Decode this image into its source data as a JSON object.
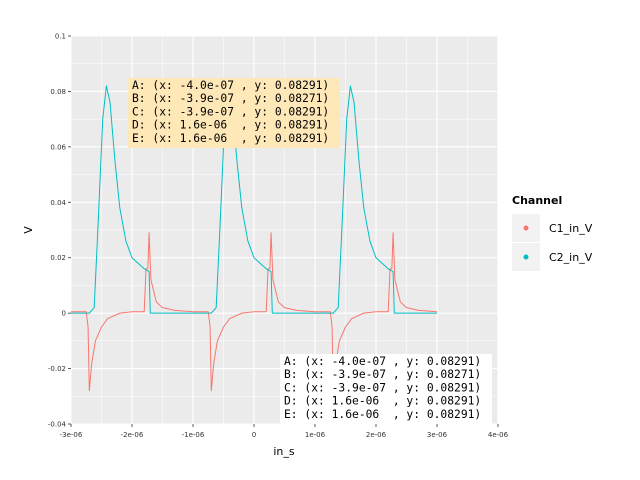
{
  "chart_data": {
    "type": "line",
    "xlabel": "in_s",
    "ylabel": "V",
    "xlim": [
      -3e-06,
      4e-06
    ],
    "ylim": [
      -0.04,
      0.1
    ],
    "x_ticks": [
      -3e-06,
      -2e-06,
      -1e-06,
      0,
      1e-06,
      2e-06,
      3e-06,
      4e-06
    ],
    "x_tick_labels": [
      "-3e-06",
      "-2e-06",
      "-1e-06",
      "0",
      "1e-06",
      "2e-06",
      "3e-06",
      "4e-06"
    ],
    "y_ticks": [
      -0.04,
      -0.02,
      0,
      0.02,
      0.04,
      0.06,
      0.08,
      0.1
    ],
    "y_tick_labels": [
      "-0.04",
      "-0.02",
      "0",
      "0.02",
      "0.04",
      "0.06",
      "0.08",
      "0.1"
    ],
    "grid": true,
    "legend": {
      "title": "Channel",
      "position": "right",
      "entries": [
        {
          "name": "C1_in_V",
          "color": "#F8766D"
        },
        {
          "name": "C2_in_V",
          "color": "#00BFC4"
        }
      ]
    },
    "series": [
      {
        "name": "C1_in_V",
        "color": "#F8766D",
        "points": [
          [
            -3e-06,
            0.0005
          ],
          [
            -2.75e-06,
            0.0005
          ],
          [
            -2.72e-06,
            -0.005
          ],
          [
            -2.7e-06,
            -0.028
          ],
          [
            -2.66e-06,
            -0.018
          ],
          [
            -2.6e-06,
            -0.01
          ],
          [
            -2.5e-06,
            -0.005
          ],
          [
            -2.4e-06,
            -0.002
          ],
          [
            -2.2e-06,
            0.0
          ],
          [
            -2e-06,
            0.0005
          ],
          [
            -1.8e-06,
            0.0005
          ],
          [
            -1.77e-06,
            0.016
          ],
          [
            -1.74e-06,
            0.016
          ],
          [
            -1.72e-06,
            0.029
          ],
          [
            -1.69e-06,
            0.012
          ],
          [
            -1.6e-06,
            0.004
          ],
          [
            -1.5e-06,
            0.002
          ],
          [
            -1.3e-06,
            0.001
          ],
          [
            -1e-06,
            0.0005
          ],
          [
            -7.5e-07,
            0.0005
          ],
          [
            -7.2e-07,
            -0.005
          ],
          [
            -7e-07,
            -0.028
          ],
          [
            -6.6e-07,
            -0.018
          ],
          [
            -6e-07,
            -0.01
          ],
          [
            -5e-07,
            -0.005
          ],
          [
            -4e-07,
            -0.002
          ],
          [
            -2e-07,
            0.0
          ],
          [
            0,
            0.0005
          ],
          [
            2e-07,
            0.0005
          ],
          [
            2.3e-07,
            0.016
          ],
          [
            2.6e-07,
            0.016
          ],
          [
            2.8e-07,
            0.029
          ],
          [
            3.1e-07,
            0.012
          ],
          [
            4e-07,
            0.004
          ],
          [
            5e-07,
            0.002
          ],
          [
            7e-07,
            0.001
          ],
          [
            1e-06,
            0.0005
          ],
          [
            1.25e-06,
            0.0005
          ],
          [
            1.28e-06,
            -0.005
          ],
          [
            1.3e-06,
            -0.028
          ],
          [
            1.34e-06,
            -0.018
          ],
          [
            1.4e-06,
            -0.01
          ],
          [
            1.5e-06,
            -0.005
          ],
          [
            1.6e-06,
            -0.002
          ],
          [
            1.8e-06,
            0.0
          ],
          [
            2e-06,
            0.0005
          ],
          [
            2.2e-06,
            0.0005
          ],
          [
            2.23e-06,
            0.016
          ],
          [
            2.26e-06,
            0.016
          ],
          [
            2.28e-06,
            0.029
          ],
          [
            2.31e-06,
            0.012
          ],
          [
            2.4e-06,
            0.004
          ],
          [
            2.5e-06,
            0.002
          ],
          [
            2.7e-06,
            0.001
          ],
          [
            3e-06,
            0.0005
          ]
        ]
      },
      {
        "name": "C2_in_V",
        "color": "#00BFC4",
        "points": [
          [
            -3e-06,
            0.0
          ],
          [
            -2.7e-06,
            0.0
          ],
          [
            -2.62e-06,
            0.002
          ],
          [
            -2.56e-06,
            0.03
          ],
          [
            -2.48e-06,
            0.07
          ],
          [
            -2.42e-06,
            0.082
          ],
          [
            -2.36e-06,
            0.076
          ],
          [
            -2.28e-06,
            0.055
          ],
          [
            -2.2e-06,
            0.038
          ],
          [
            -2.1e-06,
            0.026
          ],
          [
            -2e-06,
            0.02
          ],
          [
            -1.9e-06,
            0.018
          ],
          [
            -1.8e-06,
            0.016
          ],
          [
            -1.72e-06,
            0.015
          ],
          [
            -1.7e-06,
            0.0
          ],
          [
            -7e-07,
            0.0
          ],
          [
            -6.2e-07,
            0.002
          ],
          [
            -5.6e-07,
            0.03
          ],
          [
            -4.8e-07,
            0.07
          ],
          [
            -4.2e-07,
            0.082
          ],
          [
            -3.6e-07,
            0.076
          ],
          [
            -2.8e-07,
            0.055
          ],
          [
            -2e-07,
            0.038
          ],
          [
            -1e-07,
            0.026
          ],
          [
            0,
            0.02
          ],
          [
            1e-07,
            0.018
          ],
          [
            2e-07,
            0.016
          ],
          [
            2.8e-07,
            0.015
          ],
          [
            3e-07,
            0.0
          ],
          [
            1.3e-06,
            0.0
          ],
          [
            1.38e-06,
            0.002
          ],
          [
            1.44e-06,
            0.03
          ],
          [
            1.52e-06,
            0.07
          ],
          [
            1.58e-06,
            0.082
          ],
          [
            1.64e-06,
            0.076
          ],
          [
            1.72e-06,
            0.055
          ],
          [
            1.8e-06,
            0.038
          ],
          [
            1.9e-06,
            0.026
          ],
          [
            2e-06,
            0.02
          ],
          [
            2.1e-06,
            0.018
          ],
          [
            2.2e-06,
            0.016
          ],
          [
            2.28e-06,
            0.015
          ],
          [
            2.3e-06,
            0.0
          ],
          [
            3e-06,
            0.0
          ]
        ]
      }
    ],
    "annotation_top": {
      "lines": [
        "A: (x: -4.0e-07 , y: 0.08291)",
        "B: (x: -3.9e-07 , y: 0.08271)",
        "C: (x: -3.9e-07 , y: 0.08291)",
        "D: (x: 1.6e-06  , y: 0.08291)",
        "E: (x: 1.6e-06  , y: 0.08291)"
      ],
      "background": "#FFE8B8"
    },
    "annotation_bottom": {
      "lines": [
        "A: (x: -4.0e-07 , y: 0.08291)",
        "B: (x: -3.9e-07 , y: 0.08271)",
        "C: (x: -3.9e-07 , y: 0.08291)",
        "D: (x: 1.6e-06  , y: 0.08291)",
        "E: (x: 1.6e-06  , y: 0.08291)"
      ],
      "background": "#FFFFFF"
    },
    "panel_background": "#EBEBEB",
    "grid_color": "#FFFFFF"
  }
}
